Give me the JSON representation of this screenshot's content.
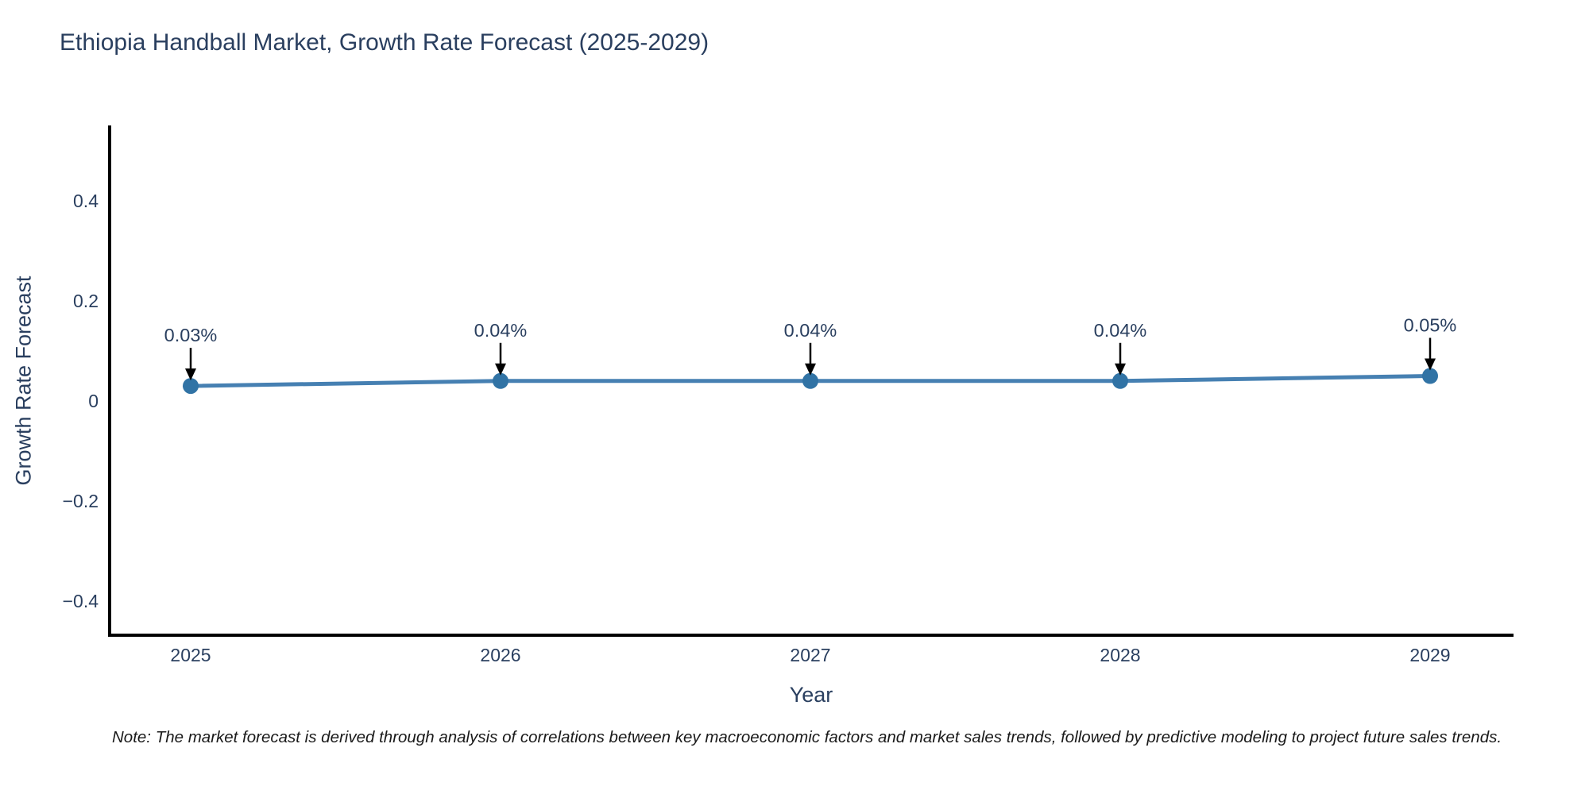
{
  "header": {
    "title": "Ethiopia Handball Market, Growth Rate Forecast (2025-2029)"
  },
  "footnote": {
    "text": "Note: The market forecast is derived through analysis of correlations between key macroeconomic factors and market sales trends, followed by predictive modeling to project future sales trends."
  },
  "chart_data": {
    "type": "line",
    "title": "Ethiopia Handball Market, Growth Rate Forecast (2025-2029)",
    "xlabel": "Year",
    "ylabel": "Growth Rate Forecast",
    "categories": [
      "2025",
      "2026",
      "2027",
      "2028",
      "2029"
    ],
    "x": [
      2025,
      2026,
      2027,
      2028,
      2029
    ],
    "values": [
      0.03,
      0.04,
      0.04,
      0.04,
      0.05
    ],
    "point_labels": [
      "0.03%",
      "0.04%",
      "0.04%",
      "0.04%",
      "0.05%"
    ],
    "xtick_labels": [
      "2025",
      "2026",
      "2027",
      "2028",
      "2029"
    ],
    "yticks": [
      {
        "value": 0.4,
        "label": "0.4"
      },
      {
        "value": 0.2,
        "label": "0.2"
      },
      {
        "value": 0,
        "label": "0"
      },
      {
        "value": -0.2,
        "label": "−0.2"
      },
      {
        "value": -0.4,
        "label": "−0.4"
      }
    ],
    "ylim": [
      -0.47,
      0.55
    ],
    "grid": false,
    "legend": "none",
    "colors": {
      "line": "#4680b2",
      "marker": "#3173a5",
      "axis": "#000000",
      "tick_text": "#2a3f5f",
      "annotation_text": "#2a3f5f",
      "arrow": "#000000"
    }
  }
}
